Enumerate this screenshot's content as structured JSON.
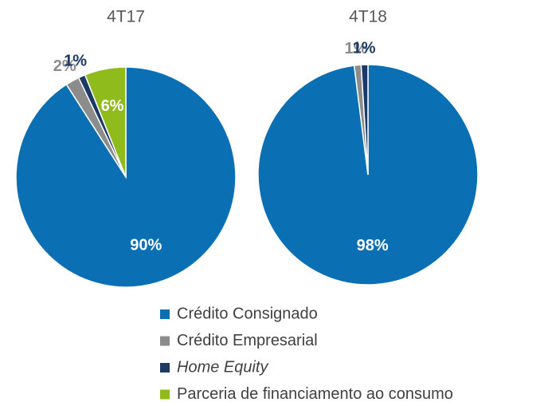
{
  "chart_data": [
    {
      "type": "pie",
      "title": "4T17",
      "values": [
        90,
        2,
        1,
        6
      ],
      "value_labels": [
        "90%",
        "2%",
        "1%",
        "6%"
      ]
    },
    {
      "type": "pie",
      "title": "4T18",
      "values": [
        98,
        1,
        1
      ],
      "value_labels": [
        "98%",
        "1%",
        "1%"
      ]
    }
  ],
  "legend": {
    "categories": [
      "Crédito Consignado",
      "Crédito Empresarial",
      "Home Equity",
      "Parceria de financiamento ao consumo"
    ],
    "colors": [
      "#0b6fb4",
      "#8c8c8c",
      "#1b3a66",
      "#8fbb1c"
    ]
  }
}
